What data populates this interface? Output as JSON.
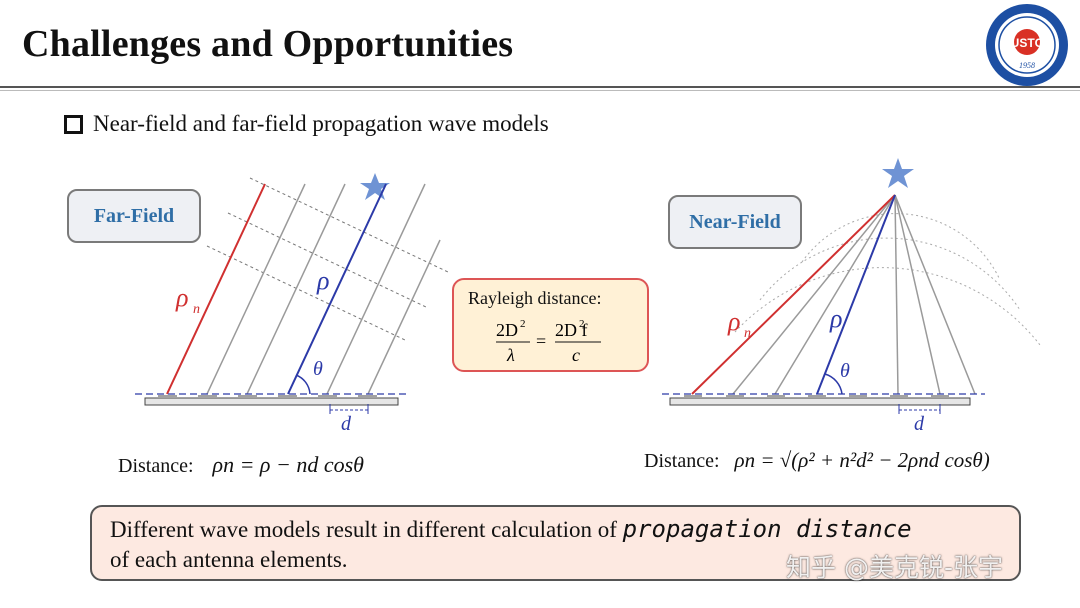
{
  "slide": {
    "title": "Challenges and Opportunities",
    "bullet": "Near-field and far-field propagation wave models",
    "far_field_label": "Far-Field",
    "near_field_label": "Near-Field",
    "rayleigh_label": "Rayleigh distance:",
    "rayleigh_formula": {
      "num1": "2D",
      "den1": "λ",
      "num2": "2D f",
      "den2": "c",
      "exp": "2"
    },
    "far_distance_prefix": "Distance:",
    "far_distance_formula": "ρn = ρ − nd cosθ",
    "near_distance_prefix": "Distance:",
    "near_distance_formula": "ρn = √(ρ² + n²d² − 2ρnd cosθ)",
    "symbols": {
      "rho_n": "ρ",
      "n": "n",
      "rho": "ρ",
      "theta": "θ",
      "d": "d"
    },
    "bottom_text_1": "Different wave models result in different calculation of ",
    "bottom_text_hand": "propagation distance",
    "bottom_text_2": "of each antenna elements.",
    "watermark": "知乎 @美克锐-张宇",
    "logo_text": "USTC",
    "logo_year": "1958"
  },
  "colors": {
    "accent_blue": "#2f6ea6",
    "red": "#d03030",
    "navy": "#2c3aa8",
    "star": "#6f93d4"
  }
}
